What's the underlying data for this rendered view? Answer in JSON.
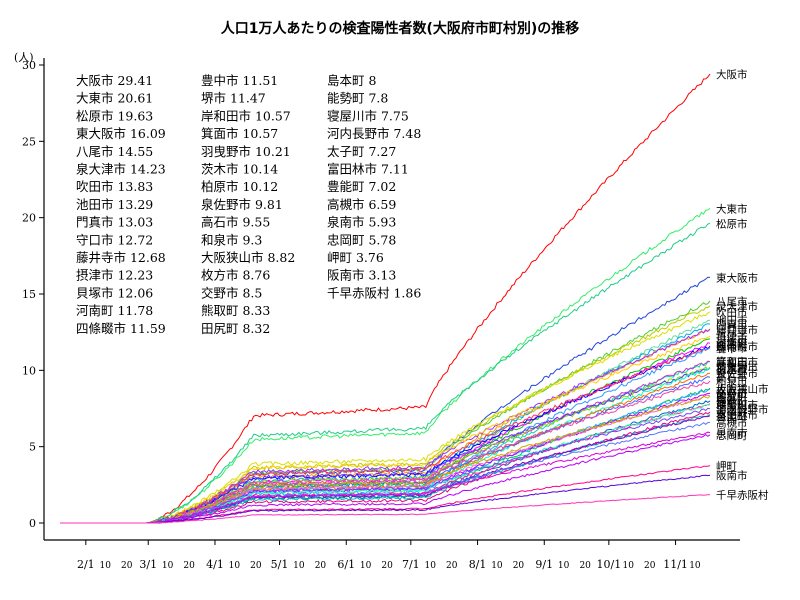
{
  "chart_data": {
    "type": "line",
    "title": "人口1万人あたりの検査陽性者数(大阪府市町村別)の推移",
    "ylabel": "(人)",
    "xlabel": "",
    "ylim": [
      0,
      30
    ],
    "yticks": [
      0,
      5,
      10,
      15,
      20,
      25,
      30
    ],
    "xlim": [
      "2020-01-20",
      "2020-11-17"
    ],
    "x_month_labels": [
      {
        "date": "2020-02-01",
        "label": "2/1"
      },
      {
        "date": "2020-03-01",
        "label": "3/1"
      },
      {
        "date": "2020-04-01",
        "label": "4/1"
      },
      {
        "date": "2020-05-01",
        "label": "5/1"
      },
      {
        "date": "2020-06-01",
        "label": "6/1"
      },
      {
        "date": "2020-07-01",
        "label": "7/1"
      },
      {
        "date": "2020-08-01",
        "label": "8/1"
      },
      {
        "date": "2020-09-01",
        "label": "9/1"
      },
      {
        "date": "2020-10-01",
        "label": "10/1"
      },
      {
        "date": "2020-11-01",
        "label": "11/1"
      }
    ],
    "x_day_labels": [
      "10",
      "20"
    ],
    "grid": false,
    "legend_placement": "top-left (3 columns)",
    "series": [
      {
        "name": "大阪市",
        "final": 29.41,
        "color": "#ff0000"
      },
      {
        "name": "大東市",
        "final": 20.61,
        "color": "#33ee66"
      },
      {
        "name": "松原市",
        "final": 19.63,
        "color": "#22cc88"
      },
      {
        "name": "東大阪市",
        "final": 16.09,
        "color": "#2244dd"
      },
      {
        "name": "八尾市",
        "final": 14.55,
        "color": "#55cc33"
      },
      {
        "name": "泉大津市",
        "final": 14.23,
        "color": "#bbcc00"
      },
      {
        "name": "吹田市",
        "final": 13.83,
        "color": "#dddd00"
      },
      {
        "name": "池田市",
        "final": 13.29,
        "color": "#66dd99"
      },
      {
        "name": "門真市",
        "final": 13.03,
        "color": "#00aaee"
      },
      {
        "name": "守口市",
        "final": 12.72,
        "color": "#ff9900"
      },
      {
        "name": "藤井寺市",
        "final": 12.68,
        "color": "#9933ff"
      },
      {
        "name": "摂津市",
        "final": 12.23,
        "color": "#ffcc00"
      },
      {
        "name": "貝塚市",
        "final": 12.06,
        "color": "#00cc00"
      },
      {
        "name": "河南町",
        "final": 11.78,
        "color": "#ff00ff"
      },
      {
        "name": "四條畷市",
        "final": 11.59,
        "color": "#0000ff"
      },
      {
        "name": "豊中市",
        "final": 11.51,
        "color": "#ff3366"
      },
      {
        "name": "堺市",
        "final": 11.47,
        "color": "#3399ff"
      },
      {
        "name": "岸和田市",
        "final": 10.57,
        "color": "#00ddaa"
      },
      {
        "name": "箕面市",
        "final": 10.57,
        "color": "#cc33cc"
      },
      {
        "name": "羽曳野市",
        "final": 10.21,
        "color": "#88dd00"
      },
      {
        "name": "茨木市",
        "final": 10.14,
        "color": "#6633ff"
      },
      {
        "name": "柏原市",
        "final": 10.12,
        "color": "#00ffcc"
      },
      {
        "name": "泉佐野市",
        "final": 9.81,
        "color": "#ff6600"
      },
      {
        "name": "高石市",
        "final": 9.55,
        "color": "#4466ff"
      },
      {
        "name": "和泉市",
        "final": 9.3,
        "color": "#ee44aa"
      },
      {
        "name": "大阪狭山市",
        "final": 8.82,
        "color": "#11bb55"
      },
      {
        "name": "枚方市",
        "final": 8.76,
        "color": "#22aaff"
      },
      {
        "name": "交野市",
        "final": 8.5,
        "color": "#aa00ff"
      },
      {
        "name": "熊取町",
        "final": 8.33,
        "color": "#ff66cc"
      },
      {
        "name": "田尻町",
        "final": 8.32,
        "color": "#ccaa00"
      },
      {
        "name": "島本町",
        "final": 8.0,
        "color": "#0066cc"
      },
      {
        "name": "能勢町",
        "final": 7.8,
        "color": "#ff2299"
      },
      {
        "name": "寝屋川市",
        "final": 7.75,
        "color": "#33ffaa"
      },
      {
        "name": "河内長野市",
        "final": 7.48,
        "color": "#7744ff"
      },
      {
        "name": "太子町",
        "final": 7.27,
        "color": "#ee0077"
      },
      {
        "name": "富田林市",
        "final": 7.11,
        "color": "#00bbbb"
      },
      {
        "name": "豊能町",
        "final": 7.02,
        "color": "#8800cc"
      },
      {
        "name": "高槻市",
        "final": 6.59,
        "color": "#5577ff"
      },
      {
        "name": "泉南市",
        "final": 5.93,
        "color": "#dd00dd"
      },
      {
        "name": "忠岡町",
        "final": 5.78,
        "color": "#bb00ff"
      },
      {
        "name": "岬町",
        "final": 3.76,
        "color": "#ff0088"
      },
      {
        "name": "阪南市",
        "final": 3.13,
        "color": "#5500dd"
      },
      {
        "name": "千早赤阪村",
        "final": 1.86,
        "color": "#ff33bb"
      }
    ],
    "legend_columns": [
      [
        "大阪市 29.41",
        "大東市 20.61",
        "松原市 19.63",
        "東大阪市 16.09",
        "八尾市 14.55",
        "泉大津市 14.23",
        "吹田市 13.83",
        "池田市 13.29",
        "門真市 13.03",
        "守口市 12.72",
        "藤井寺市 12.68",
        "摂津市 12.23",
        "貝塚市 12.06",
        "河南町 11.78",
        "四條畷市 11.59"
      ],
      [
        "豊中市 11.51",
        "堺市 11.47",
        "岸和田市 10.57",
        "箕面市 10.57",
        "羽曳野市 10.21",
        "茨木市 10.14",
        "柏原市 10.12",
        "泉佐野市 9.81",
        "高石市 9.55",
        "和泉市 9.3",
        "大阪狭山市 8.82",
        "枚方市 8.76",
        "交野市 8.5",
        "熊取町 8.33",
        "田尻町 8.32"
      ],
      [
        "島本町 8",
        "能勢町 7.8",
        "寝屋川市 7.75",
        "河内長野市 7.48",
        "太子町 7.27",
        "富田林市 7.11",
        "豊能町 7.02",
        "高槻市 6.59",
        "泉南市 5.93",
        "忠岡町 5.78",
        "岬町 3.76",
        "阪南市 3.13",
        "千早赤阪村 1.86"
      ]
    ]
  }
}
